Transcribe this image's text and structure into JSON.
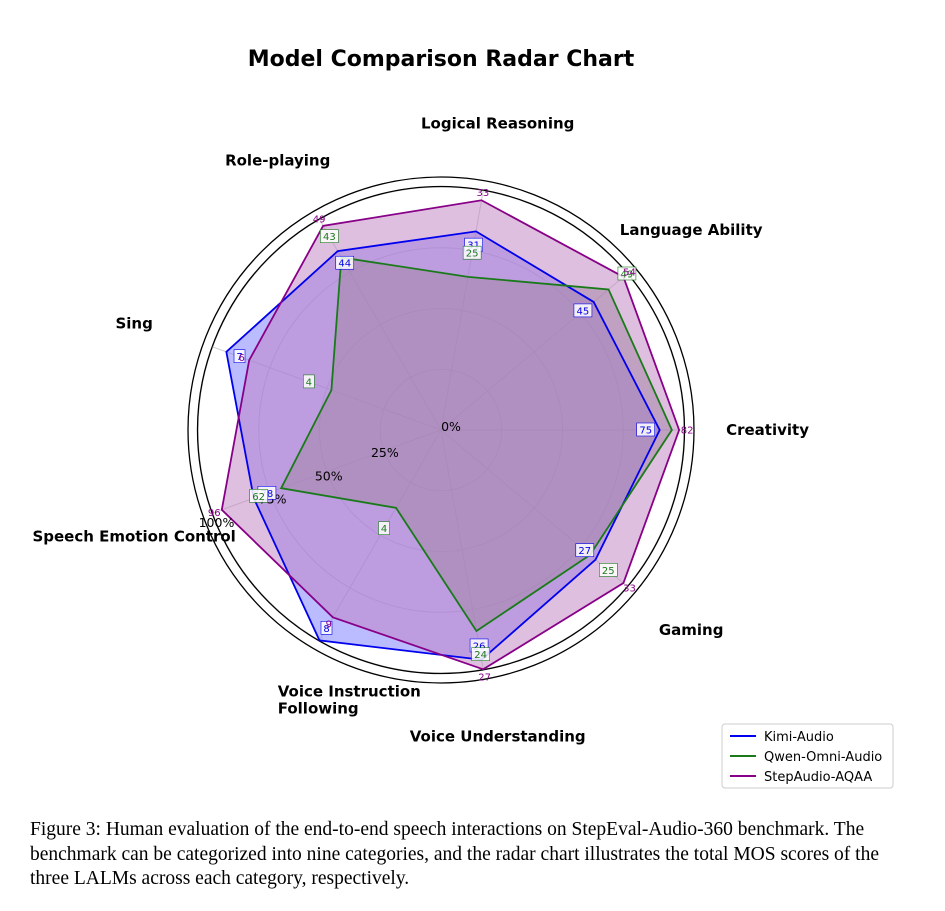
{
  "chart_data": {
    "type": "radar",
    "title": "Model Comparison Radar Chart",
    "categories": [
      "Creativity",
      "Language Ability",
      "Logical Reasoning",
      "Role-playing",
      "Sing",
      "Speech Emotion Control",
      "Voice Instruction Following",
      "Voice Understanding",
      "Gaming"
    ],
    "category_display": [
      [
        "Creativity"
      ],
      [
        "Language Ability"
      ],
      [
        "Logical Reasoning"
      ],
      [
        "Role-playing"
      ],
      [
        "Sing"
      ],
      [
        "Speech Emotion Control"
      ],
      [
        "Voice Instruction",
        "Following"
      ],
      [
        "Voice Understanding"
      ],
      [
        "Gaming"
      ]
    ],
    "radial_ticks": [
      "0%",
      "25%",
      "50%",
      "75%",
      "100%"
    ],
    "radial_range": [
      0,
      100
    ],
    "series": [
      {
        "name": "Kimi-Audio",
        "color": "#0000ee",
        "fill": "#7777ff",
        "values_percent": [
          90,
          82,
          83,
          85,
          94,
          82,
          100,
          96,
          83
        ],
        "raw_scores": [
          "75",
          "45",
          "31",
          "44",
          "7",
          "78",
          "8",
          "26",
          "27"
        ]
      },
      {
        "name": "Qwen-Omni-Audio",
        "color": "#1a7a1a",
        "fill": "#888888",
        "values_percent": [
          95,
          90,
          64,
          82,
          48,
          70,
          37,
          84,
          80
        ],
        "raw_scores": [
          "",
          "49",
          "25",
          "43",
          "4",
          "62",
          "4",
          "24",
          "25"
        ]
      },
      {
        "name": "StepAudio-AQAA",
        "color": "#880088",
        "fill": "#c080c0",
        "values_percent": [
          98,
          98,
          96,
          97,
          84,
          96,
          89,
          100,
          98
        ],
        "raw_scores": [
          "82",
          "54",
          "33",
          "49",
          "6",
          "96",
          "9",
          "27",
          "33"
        ]
      }
    ],
    "legend": {
      "position": "lower-right",
      "items": [
        "Kimi-Audio",
        "Qwen-Omni-Audio",
        "StepAudio-AQAA"
      ]
    }
  },
  "caption": "Figure 3: Human evaluation of the end-to-end speech interactions on StepEval-Audio-360 benchmark. The benchmark can be categorized into nine categories, and the radar chart illustrates the total MOS scores of the three LALMs across each category, respectively."
}
